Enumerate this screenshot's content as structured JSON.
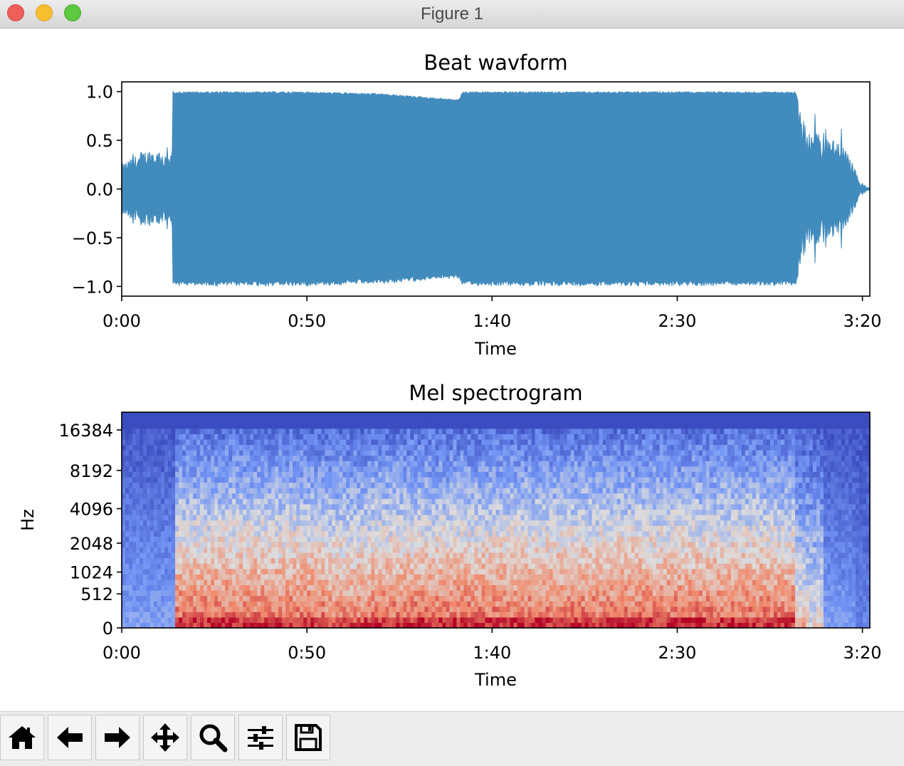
{
  "window": {
    "title": "Figure 1"
  },
  "toolbar": {
    "buttons": [
      {
        "name": "home-button",
        "icon": "home-icon"
      },
      {
        "name": "back-button",
        "icon": "arrow-left-icon"
      },
      {
        "name": "forward-button",
        "icon": "arrow-right-icon"
      },
      {
        "name": "pan-button",
        "icon": "move-icon"
      },
      {
        "name": "zoom-button",
        "icon": "magnifier-icon"
      },
      {
        "name": "configure-subplots-button",
        "icon": "sliders-icon"
      },
      {
        "name": "save-button",
        "icon": "floppy-disk-icon"
      }
    ]
  },
  "chart_data": [
    {
      "type": "area",
      "title": "Beat wavform",
      "xlabel": "Time",
      "ylabel": "",
      "xlim": [
        0,
        202
      ],
      "ylim": [
        -1.1,
        1.1
      ],
      "x_ticks": [
        0,
        50,
        100,
        150,
        200
      ],
      "x_tick_labels": [
        "0:00",
        "0:50",
        "1:40",
        "2:30",
        "3:20"
      ],
      "y_ticks": [
        1.0,
        0.5,
        0.0,
        -0.5,
        -1.0
      ],
      "y_tick_labels": [
        "1.0",
        "0.5",
        "0.0",
        "−0.5",
        "−1.0"
      ],
      "series": [
        {
          "color": "#428bbd",
          "envelope_time_s": [
            0,
            2,
            5,
            8,
            11,
            13.5,
            14,
            28,
            50,
            70,
            91,
            92,
            100,
            110,
            130,
            150,
            170,
            182,
            183,
            186,
            189,
            192,
            195,
            197,
            198,
            199.5,
            202
          ],
          "envelope_amplitude": [
            0.26,
            0.3,
            0.38,
            0.42,
            0.36,
            0.35,
            1.0,
            1.0,
            1.0,
            0.98,
            0.92,
            1.0,
            1.0,
            1.0,
            1.0,
            1.0,
            1.0,
            1.0,
            0.85,
            0.6,
            0.55,
            0.5,
            0.45,
            0.3,
            0.2,
            0.05,
            0.01
          ]
        }
      ],
      "grid": false,
      "legend": "none"
    },
    {
      "type": "heatmap",
      "title": "Mel spectrogram",
      "xlabel": "Time",
      "ylabel": "Hz",
      "xlim": [
        0,
        202
      ],
      "x_ticks": [
        0,
        50,
        100,
        150,
        200
      ],
      "x_tick_labels": [
        "0:00",
        "0:50",
        "1:40",
        "2:30",
        "3:20"
      ],
      "y_scale": "mel",
      "y_ticks": [
        0,
        512,
        1024,
        2048,
        4096,
        8192,
        16384
      ],
      "y_tick_labels": [
        "0",
        "512",
        "1024",
        "2048",
        "4096",
        "8192",
        "16384"
      ],
      "ylim": [
        0,
        22050
      ],
      "colormap": "coolwarm",
      "colormap_stops": [
        "#3b4cc0",
        "#7396f5",
        "#dddddd",
        "#f08a6c",
        "#b40426"
      ],
      "grid": false,
      "legend": "none"
    }
  ]
}
